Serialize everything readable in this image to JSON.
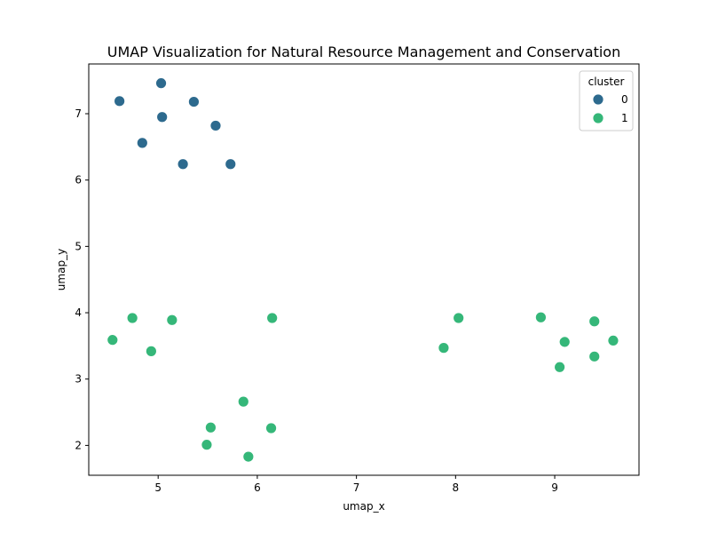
{
  "chart_data": {
    "type": "scatter",
    "title": "UMAP Visualization for Natural Resource Management and Conservation",
    "xlabel": "umap_x",
    "ylabel": "umap_y",
    "xlim": [
      4.3,
      9.85
    ],
    "ylim": [
      1.55,
      7.75
    ],
    "x_ticks": [
      5,
      6,
      7,
      8,
      9
    ],
    "y_ticks": [
      2,
      3,
      4,
      5,
      6,
      7
    ],
    "grid": false,
    "legend": {
      "title": "cluster",
      "position": "top-right"
    },
    "series": [
      {
        "name": "0",
        "color": "#2d6a8e",
        "points": [
          [
            4.61,
            7.19
          ],
          [
            5.03,
            7.46
          ],
          [
            5.04,
            6.95
          ],
          [
            5.36,
            7.18
          ],
          [
            5.58,
            6.82
          ],
          [
            4.84,
            6.56
          ],
          [
            5.25,
            6.24
          ],
          [
            5.73,
            6.24
          ]
        ]
      },
      {
        "name": "1",
        "color": "#35b779",
        "points": [
          [
            4.54,
            3.59
          ],
          [
            4.74,
            3.92
          ],
          [
            4.93,
            3.42
          ],
          [
            5.14,
            3.89
          ],
          [
            6.15,
            3.92
          ],
          [
            5.86,
            2.66
          ],
          [
            5.53,
            2.27
          ],
          [
            5.49,
            2.01
          ],
          [
            6.14,
            2.26
          ],
          [
            5.91,
            1.83
          ],
          [
            7.88,
            3.47
          ],
          [
            8.03,
            3.92
          ],
          [
            8.86,
            3.93
          ],
          [
            9.1,
            3.56
          ],
          [
            9.05,
            3.18
          ],
          [
            9.4,
            3.87
          ],
          [
            9.4,
            3.34
          ],
          [
            9.59,
            3.58
          ]
        ]
      }
    ]
  }
}
